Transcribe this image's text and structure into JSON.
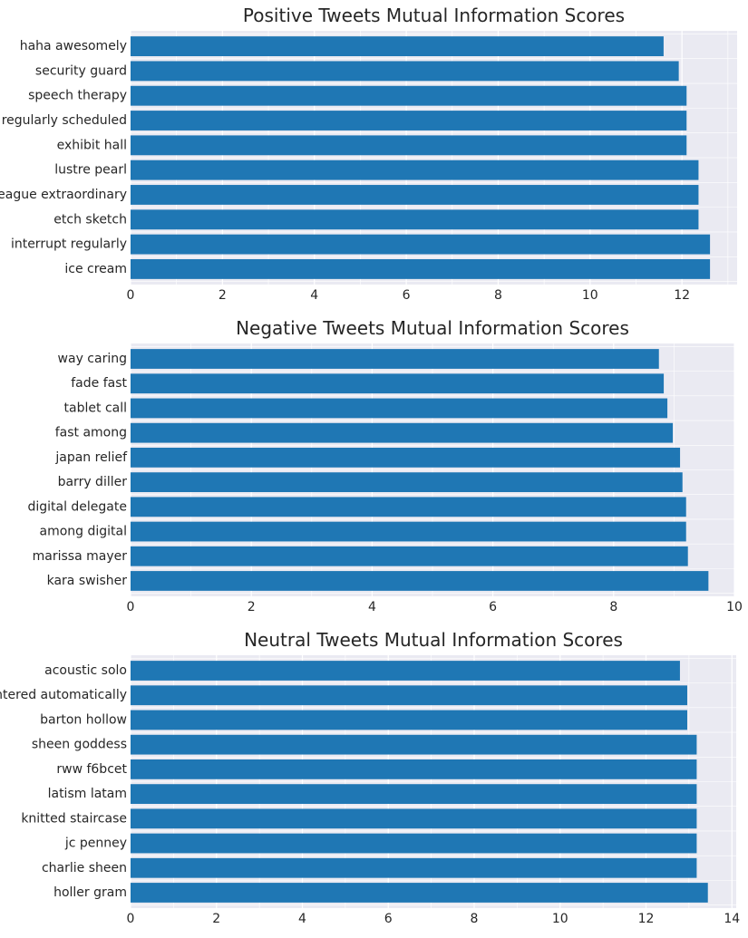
{
  "chart_data": [
    {
      "type": "bar",
      "orientation": "horizontal",
      "title": "Positive Tweets Mutual Information Scores",
      "categories": [
        "haha awesomely",
        "security guard",
        "speech therapy",
        "regularly scheduled",
        "exhibit hall",
        "lustre pearl",
        "league extraordinary",
        "etch sketch",
        "interrupt regularly",
        "ice cream"
      ],
      "values": [
        11.6,
        11.93,
        12.1,
        12.1,
        12.1,
        12.36,
        12.36,
        12.36,
        12.61,
        12.61
      ],
      "xlim": [
        0,
        13.2
      ],
      "xticks": [
        "0",
        "2",
        "4",
        "6",
        "8",
        "10",
        "12"
      ],
      "grid": true,
      "bar_color": "#1f77b4"
    },
    {
      "type": "bar",
      "orientation": "horizontal",
      "title": "Negative Tweets Mutual Information Scores",
      "categories": [
        "way caring",
        "fade fast",
        "tablet call",
        "fast among",
        "japan relief",
        "barry diller",
        "digital delegate",
        "among digital",
        "marissa mayer",
        "kara swisher"
      ],
      "values": [
        8.75,
        8.83,
        8.89,
        8.98,
        9.1,
        9.14,
        9.2,
        9.2,
        9.23,
        9.57
      ],
      "xlim": [
        0,
        10
      ],
      "xticks": [
        "0",
        "2",
        "4",
        "6",
        "8",
        "10"
      ],
      "grid": true,
      "bar_color": "#1f77b4"
    },
    {
      "type": "bar",
      "orientation": "horizontal",
      "title": "Neutral Tweets Mutual Information Scores",
      "categories": [
        "acoustic solo",
        "entered automatically",
        "barton hollow",
        "sheen goddess",
        "rww f6bcet",
        "latism latam",
        "knitted staircase",
        "jc penney",
        "charlie sheen",
        "holler gram"
      ],
      "values": [
        12.79,
        12.96,
        12.96,
        13.18,
        13.18,
        13.18,
        13.18,
        13.18,
        13.18,
        13.44
      ],
      "xlim": [
        0,
        14.1
      ],
      "xticks": [
        "0",
        "2",
        "4",
        "6",
        "8",
        "10",
        "12",
        "14"
      ],
      "grid": true,
      "bar_color": "#1f77b4"
    }
  ]
}
